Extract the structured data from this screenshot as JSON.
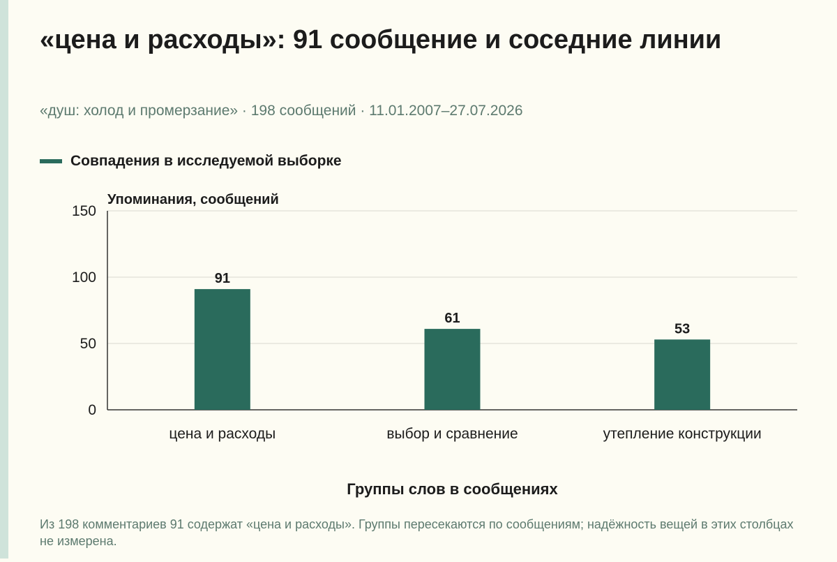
{
  "header": {
    "title": "«цена и расходы»: 91 сообщение и соседние линии",
    "subtitle": "«душ: холод и промерзание» · 198 сообщений · 11.01.2007–27.07.2026"
  },
  "legend": {
    "label": "Совпадения в исследуемой выборке"
  },
  "colors": {
    "bar": "#2a6b5c",
    "accent_strip": "#cfe3da",
    "muted_text": "#5d7a6f"
  },
  "chart_data": {
    "type": "bar",
    "title": "«цена и расходы»: 91 сообщение и соседние линии",
    "ylabel": "Упоминания, сообщений",
    "xlabel": "Группы слов в сообщениях",
    "ylim": [
      0,
      150
    ],
    "yticks": [
      0,
      50,
      100,
      150
    ],
    "grid": true,
    "legend_position": "top-left",
    "categories": [
      "цена и расходы",
      "выбор и сравнение",
      "утепление конструкции"
    ],
    "series": [
      {
        "name": "Совпадения в исследуемой выборке",
        "values": [
          91,
          61,
          53
        ]
      }
    ]
  },
  "footnote": "Из 198 комментариев 91 содержат «цена и расходы». Группы пересекаются по сообщениям; надёжность вещей в этих столбцах не измерена."
}
